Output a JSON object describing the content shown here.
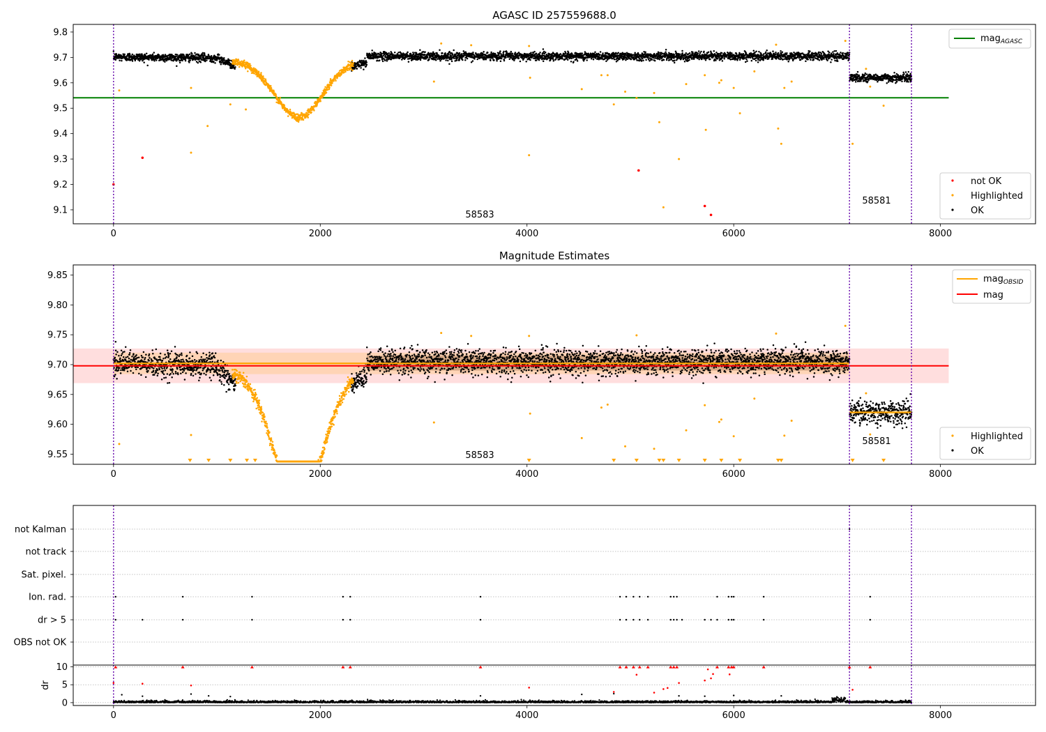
{
  "chart_data": [
    {
      "type": "scatter",
      "title": "AGASC ID 257559688.0",
      "xlim": [
        -390,
        8920
      ],
      "ylim": [
        9.045,
        9.83
      ],
      "xticks": [
        0,
        2000,
        4000,
        6000,
        8000
      ],
      "xtick_labels": [
        "0",
        "2000",
        "4000",
        "6000",
        "8000"
      ],
      "yticks": [
        9.1,
        9.2,
        9.3,
        9.4,
        9.5,
        9.6,
        9.7,
        9.8
      ],
      "ytick_labels": [
        "9.1",
        "9.2",
        "9.3",
        "9.4",
        "9.5",
        "9.6",
        "9.7",
        "9.8"
      ],
      "grid": false,
      "legend_top": {
        "placement": "top-right",
        "entries": [
          {
            "label": "mag",
            "sub": "AGASC",
            "color": "#008000"
          }
        ]
      },
      "legend_bottom": {
        "placement": "bottom-right",
        "entries": [
          {
            "label": "not OK",
            "color": "#ff0000"
          },
          {
            "label": "Highlighted",
            "color": "#ffa500"
          },
          {
            "label": "OK",
            "color": "#000000"
          }
        ]
      },
      "hline": {
        "y": 9.541,
        "x": [
          -390,
          8080
        ],
        "color": "#008000"
      },
      "vlines": [
        0,
        7120,
        7720
      ],
      "obsid_labels": [
        {
          "text": "58583",
          "x": 3550,
          "y": 9.07
        },
        {
          "text": "58581",
          "x": 7400,
          "y": 9.125
        }
      ],
      "not_ok_points": [
        [
          0,
          9.2
        ],
        [
          280,
          9.305
        ],
        [
          5080,
          9.255
        ],
        [
          5720,
          9.115
        ],
        [
          5780,
          9.08
        ]
      ],
      "highlighted_outliers": [
        [
          55,
          9.57
        ],
        [
          750,
          9.58
        ],
        [
          750,
          9.325
        ],
        [
          910,
          9.43
        ],
        [
          1130,
          9.515
        ],
        [
          1280,
          9.495
        ],
        [
          3100,
          9.605
        ],
        [
          3170,
          9.755
        ],
        [
          3460,
          9.748
        ],
        [
          4020,
          9.745
        ],
        [
          4030,
          9.62
        ],
        [
          4020,
          9.315
        ],
        [
          4530,
          9.575
        ],
        [
          4720,
          9.63
        ],
        [
          4780,
          9.63
        ],
        [
          4840,
          9.515
        ],
        [
          4950,
          9.565
        ],
        [
          5060,
          9.54
        ],
        [
          5230,
          9.56
        ],
        [
          5280,
          9.445
        ],
        [
          5320,
          9.11
        ],
        [
          5470,
          9.3
        ],
        [
          5540,
          9.595
        ],
        [
          5720,
          9.63
        ],
        [
          5730,
          9.415
        ],
        [
          5860,
          9.6
        ],
        [
          5880,
          9.61
        ],
        [
          6000,
          9.58
        ],
        [
          6060,
          9.48
        ],
        [
          6200,
          9.645
        ],
        [
          6410,
          9.75
        ],
        [
          6430,
          9.42
        ],
        [
          6460,
          9.36
        ],
        [
          6490,
          9.58
        ],
        [
          6560,
          9.605
        ],
        [
          7080,
          9.765
        ],
        [
          7150,
          9.36
        ],
        [
          7280,
          9.655
        ],
        [
          7320,
          9.585
        ],
        [
          7450,
          9.51
        ]
      ]
    },
    {
      "type": "scatter",
      "title": "Magnitude Estimates",
      "xlim": [
        -390,
        8920
      ],
      "ylim": [
        9.533,
        9.867
      ],
      "xticks": [
        0,
        2000,
        4000,
        6000,
        8000
      ],
      "xtick_labels": [
        "0",
        "2000",
        "4000",
        "6000",
        "8000"
      ],
      "yticks": [
        9.55,
        9.6,
        9.65,
        9.7,
        9.75,
        9.8,
        9.85
      ],
      "ytick_labels": [
        "9.55",
        "9.60",
        "9.65",
        "9.70",
        "9.75",
        "9.80",
        "9.85"
      ],
      "grid": false,
      "legend_top": {
        "placement": "top-right",
        "entries": [
          {
            "label": "mag",
            "sub": "OBSID",
            "color": "#ffa500"
          },
          {
            "label": "mag",
            "color": "#ff0000"
          }
        ]
      },
      "legend_bottom": {
        "placement": "bottom-right",
        "entries": [
          {
            "label": "Highlighted",
            "color": "#ffa500"
          },
          {
            "label": "OK",
            "color": "#000000"
          }
        ]
      },
      "mag_line": {
        "y": 9.698,
        "x": [
          -390,
          8080
        ],
        "band": [
          9.669,
          9.727
        ],
        "color": "#ff0000"
      },
      "obsid_mag_segments": [
        {
          "x": [
            0,
            7120
          ],
          "y": 9.702,
          "band": [
            9.684,
            9.72
          ]
        },
        {
          "x": [
            7120,
            7720
          ],
          "y": 9.62,
          "band": [
            9.616,
            9.624
          ]
        }
      ],
      "vlines": [
        0,
        7120,
        7720
      ],
      "obsid_labels": [
        {
          "text": "58583",
          "x": 3550,
          "y": 9.545
        },
        {
          "text": "58581",
          "x": 7400,
          "y": 9.568
        }
      ],
      "clipped_markers_x": [
        740,
        920,
        1130,
        1290,
        1370,
        4020,
        4840,
        5060,
        5280,
        5320,
        5470,
        5720,
        5880,
        6060,
        6430,
        6460,
        7150,
        7450
      ],
      "highlighted_outliers": [
        [
          55,
          9.567
        ],
        [
          750,
          9.582
        ],
        [
          3100,
          9.603
        ],
        [
          3170,
          9.753
        ],
        [
          3460,
          9.748
        ],
        [
          4020,
          9.748
        ],
        [
          4030,
          9.618
        ],
        [
          4530,
          9.577
        ],
        [
          4720,
          9.628
        ],
        [
          4780,
          9.633
        ],
        [
          4950,
          9.563
        ],
        [
          5060,
          9.749
        ],
        [
          5230,
          9.559
        ],
        [
          5540,
          9.59
        ],
        [
          5720,
          9.632
        ],
        [
          5860,
          9.604
        ],
        [
          5880,
          9.608
        ],
        [
          6000,
          9.58
        ],
        [
          6200,
          9.643
        ],
        [
          6410,
          9.752
        ],
        [
          6490,
          9.581
        ],
        [
          6560,
          9.606
        ],
        [
          7080,
          9.765
        ],
        [
          7280,
          9.652
        ],
        [
          7320,
          9.583
        ]
      ]
    },
    {
      "type": "scatter",
      "title": "",
      "xlim": [
        -390,
        8920
      ],
      "xticks": [
        0,
        2000,
        4000,
        6000,
        8000
      ],
      "xtick_labels": [
        "0",
        "2000",
        "4000",
        "6000",
        "8000"
      ],
      "flag_rows": [
        "not Kalman",
        "not track",
        "Sat. pixel.",
        "Ion. rad.",
        "dr > 5",
        "OBS not OK"
      ],
      "flag_grid": true,
      "vlines": [
        0,
        7120,
        7720
      ],
      "flags": {
        "not Kalman": [
          7120
        ],
        "Ion. rad.": [
          20,
          670,
          1340,
          2220,
          2290,
          3550,
          4900,
          4960,
          5030,
          5090,
          5170,
          5390,
          5420,
          5450,
          5840,
          5950,
          5980,
          6000,
          6290,
          7320
        ],
        "dr > 5": [
          20,
          280,
          670,
          1340,
          2220,
          2290,
          3550,
          4900,
          4960,
          5030,
          5090,
          5170,
          5390,
          5420,
          5450,
          5500,
          5720,
          5780,
          5840,
          5950,
          5980,
          6000,
          6290,
          7320
        ]
      },
      "dr_panel": {
        "ylabel": "dr",
        "ylim": [
          -0.8,
          10.5
        ],
        "yticks": [
          0,
          5,
          10
        ],
        "ytick_labels": [
          "0",
          "5",
          "10"
        ],
        "grid": true,
        "clipped_x": [
          20,
          670,
          1340,
          2220,
          2290,
          3550,
          4900,
          4960,
          5030,
          5090,
          5170,
          5390,
          5420,
          5450,
          5840,
          5950,
          5980,
          6000,
          6290,
          7120,
          7320
        ],
        "red_points": [
          [
            0,
            5.5
          ],
          [
            280,
            5.3
          ],
          [
            750,
            4.8
          ],
          [
            4020,
            4.2
          ],
          [
            4840,
            3.0
          ],
          [
            5060,
            7.8
          ],
          [
            5230,
            2.8
          ],
          [
            5320,
            3.8
          ],
          [
            5360,
            4.1
          ],
          [
            5470,
            5.5
          ],
          [
            5720,
            6.2
          ],
          [
            5750,
            9.3
          ],
          [
            5780,
            6.8
          ],
          [
            5800,
            8.0
          ],
          [
            5960,
            7.9
          ],
          [
            7150,
            3.6
          ]
        ],
        "black_points": [
          [
            80,
            2.2
          ],
          [
            280,
            1.8
          ],
          [
            750,
            2.4
          ],
          [
            920,
            1.9
          ],
          [
            1130,
            1.7
          ],
          [
            3550,
            1.9
          ],
          [
            4530,
            2.3
          ],
          [
            4840,
            2.5
          ],
          [
            5470,
            1.9
          ],
          [
            5720,
            1.8
          ],
          [
            6000,
            2.0
          ],
          [
            6460,
            1.9
          ]
        ]
      }
    }
  ]
}
